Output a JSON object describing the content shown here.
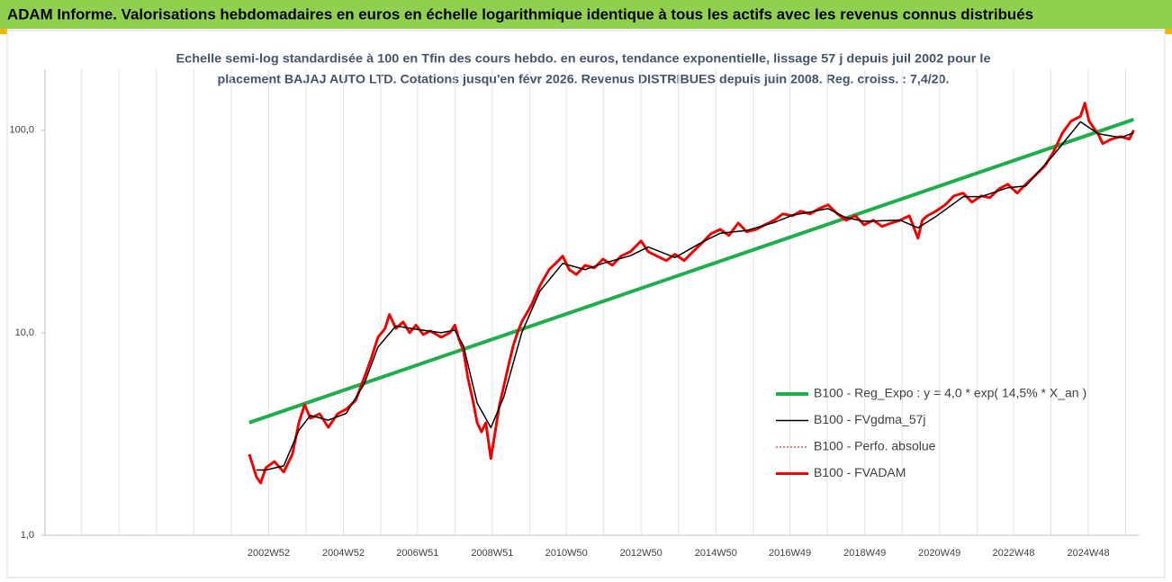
{
  "header": {
    "title": "ADAM Informe. Valorisations hebdomadaires en euros en échelle logarithmique identique à tous les actifs avec les revenus connus distribués"
  },
  "chart_data": {
    "type": "line",
    "title": "Echelle semi-log standardisée à 100 en Tfin des cours hebdo. en euros, tendance exponentielle, lissage 57 j depuis juil 2002 pour le",
    "subtitle": "placement BAJAJ AUTO LTD. Cotations jusqu'en févr 2026. Revenus DISTRIBUES depuis juin 2008. Reg. croiss. : 7,4/20.",
    "log_y": true,
    "legend": "lower right",
    "ylim": [
      1,
      200
    ],
    "yticks": [
      {
        "value": 1,
        "label": "1,0"
      },
      {
        "value": 10,
        "label": "10,0"
      },
      {
        "value": 100,
        "label": "100,0"
      }
    ],
    "xlim": [
      "1997W01",
      "2026W14"
    ],
    "xticks": [
      "2002W52",
      "2004W52",
      "2006W51",
      "2008W51",
      "2010W50",
      "2012W50",
      "2014W50",
      "2016W49",
      "2018W49",
      "2020W49",
      "2022W48",
      "2024W48"
    ],
    "series": [
      {
        "name": "B100 - Reg_Expo : y = 4,0 * exp( 14,5% *  X_an )",
        "color": "#1fae4b",
        "width": 4,
        "x": [
          "2002W25",
          "2026W07"
        ],
        "values": [
          3.6,
          113
        ]
      },
      {
        "name": "B100 - FVgdma_57j",
        "color": "#000000",
        "width": 1.5,
        "x": [
          "2002W35",
          "2002W48",
          "2003W21",
          "2003W42",
          "2004W06",
          "2004W31",
          "2005W04",
          "2005W29",
          "2005W48",
          "2006W21",
          "2006W49",
          "2007W32",
          "2007W51",
          "2008W11",
          "2008W30",
          "2008W49",
          "2009W15",
          "2009W40",
          "2010W13",
          "2010W45",
          "2011W24",
          "2011W49",
          "2012W35",
          "2013W08",
          "2013W45",
          "2014W31",
          "2015W04",
          "2015W41",
          "2016W27",
          "2016W52",
          "2017W50",
          "2018W23",
          "2018W48",
          "2019W46",
          "2020W19",
          "2020W44",
          "2021W30",
          "2022W03",
          "2022W40",
          "2023W13",
          "2023W51",
          "2024W37",
          "2025W10",
          "2025W41",
          "2026W07"
        ],
        "values": [
          2.1,
          2.1,
          2.2,
          3.3,
          3.9,
          3.7,
          4.0,
          5.6,
          8.5,
          10.8,
          10.4,
          10.0,
          10.3,
          8.6,
          4.5,
          3.4,
          4.8,
          10.0,
          16.0,
          22.0,
          20.5,
          22.0,
          24.0,
          26.5,
          23.5,
          28.0,
          31.0,
          32.0,
          35.0,
          38.0,
          41.0,
          37.0,
          35.5,
          36.0,
          33.0,
          37.5,
          47.0,
          47.0,
          52.0,
          53.0,
          75.0,
          110,
          96,
          92,
          97
        ]
      },
      {
        "name": "B100 - Perfo. absolue",
        "color": "#c00000",
        "width": 1,
        "style": "dotted",
        "x": [
          "2002W25",
          "2002W29",
          "2002W35",
          "2002W41",
          "2002W48",
          "2003W08",
          "2003W21",
          "2003W33",
          "2003W42",
          "2003W50",
          "2004W06",
          "2004W19",
          "2004W31",
          "2004W44",
          "2005W04",
          "2005W17",
          "2005W29",
          "2005W38",
          "2005W48",
          "2006W06",
          "2006W12",
          "2006W21",
          "2006W31",
          "2006W40",
          "2006W49",
          "2007W07",
          "2007W17",
          "2007W32",
          "2007W44",
          "2007W51",
          "2008W05",
          "2008W11",
          "2008W17",
          "2008W24",
          "2008W30",
          "2008W36",
          "2008W42",
          "2008W49",
          "2009W03",
          "2009W09",
          "2009W15",
          "2009W22",
          "2009W28",
          "2009W34",
          "2009W40",
          "2010W01",
          "2010W13",
          "2010W26",
          "2010W39",
          "2010W45",
          "2011W02",
          "2011W12",
          "2011W24",
          "2011W37",
          "2011W49",
          "2012W10",
          "2012W22",
          "2012W35",
          "2012W50",
          "2013W08",
          "2013W20",
          "2013W33",
          "2013W45",
          "2014W06",
          "2014W18",
          "2014W31",
          "2014W43",
          "2015W04",
          "2015W16",
          "2015W29",
          "2015W41",
          "2016W02",
          "2016W14",
          "2016W27",
          "2016W39",
          "2016W52",
          "2017W12",
          "2017W25",
          "2017W38",
          "2017W50",
          "2018W11",
          "2018W23",
          "2018W36",
          "2018W48",
          "2019W09",
          "2019W21",
          "2019W34",
          "2019W46",
          "2020W07",
          "2020W19",
          "2020W25",
          "2020W32",
          "2020W44",
          "2021W05",
          "2021W17",
          "2021W30",
          "2021W42",
          "2022W03",
          "2022W15",
          "2022W28",
          "2022W40",
          "2023W01",
          "2023W13",
          "2023W26",
          "2023W39",
          "2023W51",
          "2024W12",
          "2024W24",
          "2024W37",
          "2024W43",
          "2024W49",
          "2025W10",
          "2025W16",
          "2025W28",
          "2025W41",
          "2026W01",
          "2026W07"
        ],
        "values": [
          2.51,
          2.27,
          1.94,
          1.81,
          2.15,
          2.31,
          2.05,
          2.51,
          3.59,
          4.41,
          3.78,
          3.98,
          3.41,
          3.98,
          4.19,
          4.64,
          6.0,
          7.36,
          9.5,
          10.5,
          12.3,
          10.5,
          11.3,
          10.0,
          10.9,
          9.8,
          10.2,
          9.5,
          10.0,
          10.9,
          9.21,
          8.15,
          6.0,
          4.64,
          3.59,
          3.24,
          3.59,
          2.39,
          3.24,
          4.41,
          5.41,
          6.99,
          8.58,
          10.0,
          11.3,
          13.6,
          17.0,
          20.5,
          22.7,
          23.9,
          20.5,
          19.4,
          21.5,
          20.9,
          23.1,
          21.5,
          23.9,
          25.1,
          28.4,
          25.1,
          23.9,
          22.7,
          24.4,
          22.7,
          25.1,
          27.8,
          30.8,
          32.4,
          30.2,
          34.8,
          31.5,
          32.4,
          34.1,
          35.9,
          38.6,
          37.8,
          39.8,
          38.6,
          41.1,
          42.8,
          38.6,
          35.9,
          37.8,
          34.1,
          35.9,
          33.5,
          34.8,
          35.9,
          37.8,
          29.3,
          35.9,
          37.8,
          39.8,
          42.8,
          47.4,
          48.9,
          44.1,
          47.4,
          46.4,
          51.4,
          54.1,
          48.9,
          54.1,
          59.9,
          66.4,
          77.4,
          97.0,
          111,
          117,
          136,
          111,
          95.0,
          85.8,
          90.3,
          93.1,
          90.3,
          100
        ]
      },
      {
        "name": "B100 - FVADAM",
        "color": "#ff0000",
        "width": 3,
        "x": [
          "2002W25",
          "2002W29",
          "2002W35",
          "2002W41",
          "2002W48",
          "2003W08",
          "2003W21",
          "2003W33",
          "2003W42",
          "2003W50",
          "2004W06",
          "2004W19",
          "2004W31",
          "2004W44",
          "2005W04",
          "2005W17",
          "2005W29",
          "2005W38",
          "2005W48",
          "2006W06",
          "2006W12",
          "2006W21",
          "2006W31",
          "2006W40",
          "2006W49",
          "2007W07",
          "2007W17",
          "2007W32",
          "2007W44",
          "2007W51",
          "2008W05",
          "2008W11",
          "2008W17",
          "2008W24",
          "2008W30",
          "2008W36",
          "2008W42",
          "2008W49",
          "2009W03",
          "2009W09",
          "2009W15",
          "2009W22",
          "2009W28",
          "2009W34",
          "2009W40",
          "2010W01",
          "2010W13",
          "2010W26",
          "2010W39",
          "2010W45",
          "2011W02",
          "2011W12",
          "2011W24",
          "2011W37",
          "2011W49",
          "2012W10",
          "2012W22",
          "2012W35",
          "2012W50",
          "2013W08",
          "2013W20",
          "2013W33",
          "2013W45",
          "2014W06",
          "2014W18",
          "2014W31",
          "2014W43",
          "2015W04",
          "2015W16",
          "2015W29",
          "2015W41",
          "2016W02",
          "2016W14",
          "2016W27",
          "2016W39",
          "2016W52",
          "2017W12",
          "2017W25",
          "2017W38",
          "2017W50",
          "2018W11",
          "2018W23",
          "2018W36",
          "2018W48",
          "2019W09",
          "2019W21",
          "2019W34",
          "2019W46",
          "2020W07",
          "2020W19",
          "2020W25",
          "2020W32",
          "2020W44",
          "2021W05",
          "2021W17",
          "2021W30",
          "2021W42",
          "2022W03",
          "2022W15",
          "2022W28",
          "2022W40",
          "2023W01",
          "2023W13",
          "2023W26",
          "2023W39",
          "2023W51",
          "2024W12",
          "2024W24",
          "2024W37",
          "2024W43",
          "2024W49",
          "2025W10",
          "2025W16",
          "2025W28",
          "2025W41",
          "2026W01",
          "2026W07"
        ],
        "values": [
          2.51,
          2.27,
          1.94,
          1.81,
          2.15,
          2.31,
          2.05,
          2.51,
          3.59,
          4.41,
          3.78,
          3.98,
          3.41,
          3.98,
          4.19,
          4.64,
          6.0,
          7.36,
          9.5,
          10.5,
          12.3,
          10.5,
          11.3,
          10.0,
          10.9,
          9.8,
          10.2,
          9.5,
          10.0,
          10.9,
          9.21,
          8.15,
          6.0,
          4.64,
          3.59,
          3.24,
          3.59,
          2.39,
          3.24,
          4.41,
          5.41,
          6.99,
          8.58,
          10.0,
          11.3,
          13.6,
          17.0,
          20.5,
          22.7,
          23.9,
          20.5,
          19.4,
          21.5,
          20.9,
          23.1,
          21.5,
          23.9,
          25.1,
          28.4,
          25.1,
          23.9,
          22.7,
          24.4,
          22.7,
          25.1,
          27.8,
          30.8,
          32.4,
          30.2,
          34.8,
          31.5,
          32.4,
          34.1,
          35.9,
          38.6,
          37.8,
          39.8,
          38.6,
          41.1,
          42.8,
          38.6,
          35.9,
          37.8,
          34.1,
          35.9,
          33.5,
          34.8,
          35.9,
          37.8,
          29.3,
          35.9,
          37.8,
          39.8,
          42.8,
          47.4,
          48.9,
          44.1,
          47.4,
          46.4,
          51.4,
          54.1,
          48.9,
          54.1,
          59.9,
          66.4,
          77.4,
          97.0,
          111,
          117,
          136,
          111,
          95.0,
          85.8,
          90.3,
          93.1,
          90.3,
          100
        ]
      }
    ]
  }
}
